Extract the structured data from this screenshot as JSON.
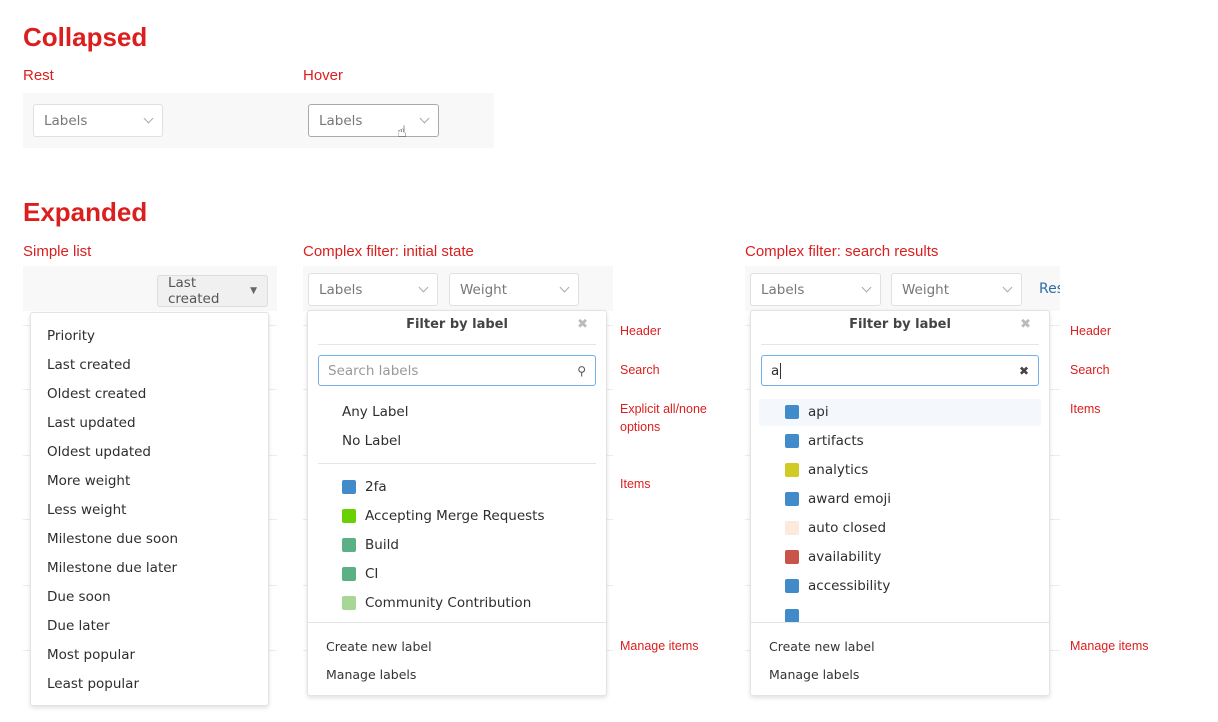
{
  "collapsed": {
    "title": "Collapsed",
    "rest_label": "Rest",
    "hover_label": "Hover",
    "button": "Labels"
  },
  "expanded": {
    "title": "Expanded",
    "simple": {
      "label": "Simple list",
      "button": "Last created",
      "items": [
        "Priority",
        "Last created",
        "Oldest created",
        "Last updated",
        "Oldest updated",
        "More weight",
        "Less weight",
        "Milestone due soon",
        "Milestone due later",
        "Due soon",
        "Due later",
        "Most popular",
        "Least popular"
      ]
    },
    "initial": {
      "label": "Complex filter: initial state",
      "labels_button": "Labels",
      "weight_button": "Weight",
      "header": "Filter by label",
      "search_placeholder": "Search labels",
      "options": [
        "Any Label",
        "No Label"
      ],
      "items": [
        {
          "name": "2fa",
          "color": "#428bca"
        },
        {
          "name": "Accepting Merge Requests",
          "color": "#69d100"
        },
        {
          "name": "Build",
          "color": "#5cb085"
        },
        {
          "name": "CI",
          "color": "#5cb085"
        },
        {
          "name": "Community Contribution",
          "color": "#a8d695"
        }
      ],
      "create": "Create new label",
      "manage": "Manage labels"
    },
    "search": {
      "label": "Complex filter: search results",
      "labels_button": "Labels",
      "weight_button": "Weight",
      "reset_link": "Res",
      "header": "Filter by label",
      "search_value": "a",
      "items": [
        {
          "name": "api",
          "color": "#428bca"
        },
        {
          "name": "artifacts",
          "color": "#428bca"
        },
        {
          "name": "analytics",
          "color": "#d1cc23"
        },
        {
          "name": "award emoji",
          "color": "#428bca"
        },
        {
          "name": "auto closed",
          "color": "#fcebdc"
        },
        {
          "name": "availability",
          "color": "#c9544b"
        },
        {
          "name": "accessibility",
          "color": "#428bca"
        }
      ],
      "create": "Create new label",
      "manage": "Manage labels"
    },
    "annotations": {
      "header": "Header",
      "search": "Search",
      "options": "Explicit all/none options",
      "items": "Items",
      "manage": "Manage items"
    }
  }
}
